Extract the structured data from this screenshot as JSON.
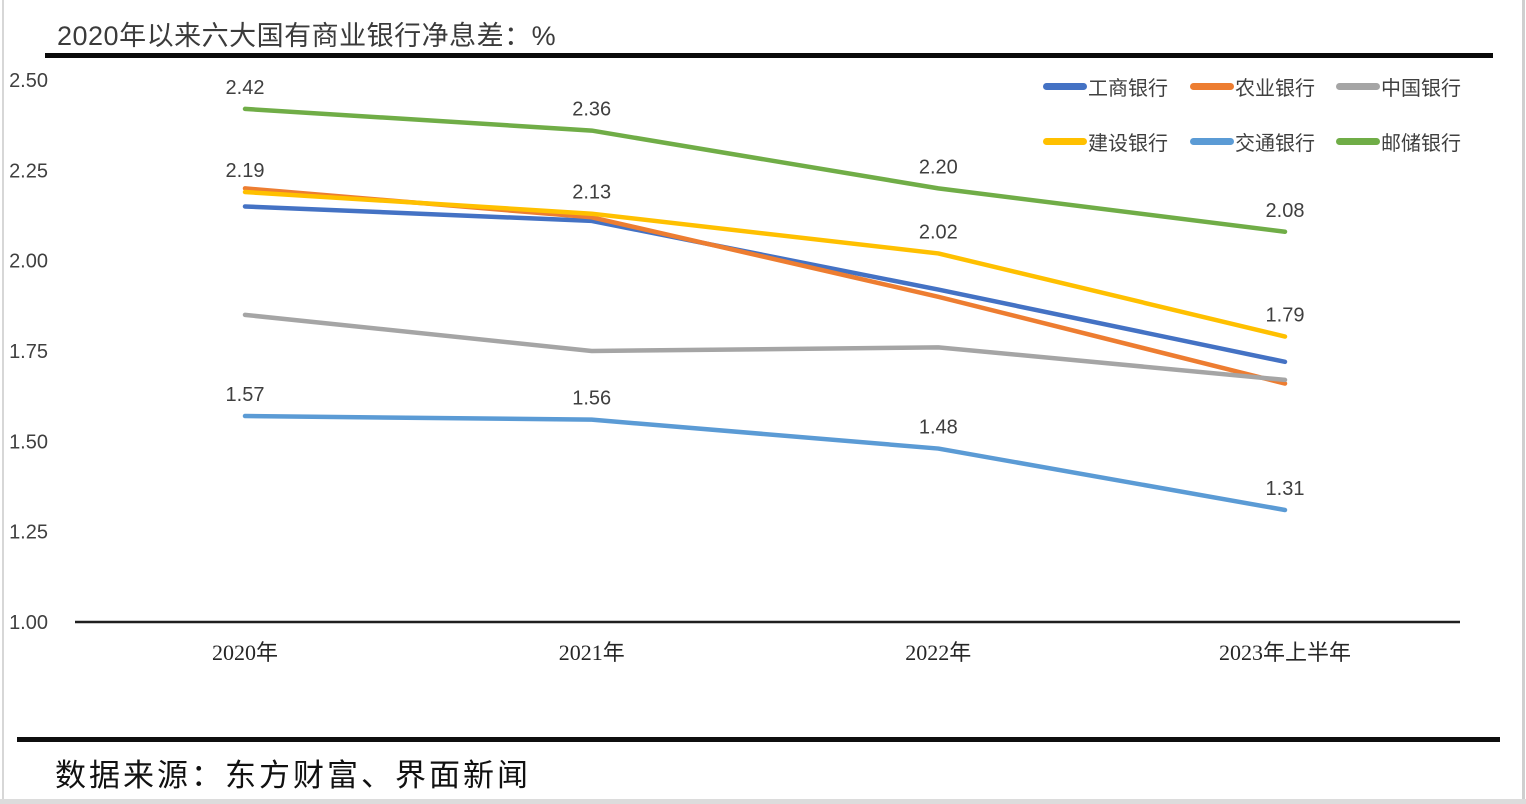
{
  "page": {
    "title": "2020年以来六大国有商业银行净息差：%",
    "source_note": "数据来源：东方财富、界面新闻"
  },
  "chart_data": {
    "type": "line",
    "title": "2020年以来六大国有商业银行净息差：%",
    "unit": "%",
    "categories": [
      "2020年",
      "2021年",
      "2022年",
      "2023年上半年"
    ],
    "ylim": [
      1.0,
      2.5
    ],
    "yticks": [
      2.5,
      2.25,
      2.0,
      1.75,
      1.5,
      1.25,
      1.0
    ],
    "grid": false,
    "legend_position": "top-right",
    "series": [
      {
        "name": "工商银行",
        "color": "#4472C4",
        "values": [
          2.15,
          2.11,
          1.92,
          1.72
        ],
        "point_labels_visible": false
      },
      {
        "name": "农业银行",
        "color": "#ED7D31",
        "values": [
          2.2,
          2.12,
          1.9,
          1.66
        ],
        "point_labels_visible": false
      },
      {
        "name": "中国银行",
        "color": "#A5A5A5",
        "values": [
          1.85,
          1.75,
          1.76,
          1.67
        ],
        "point_labels_visible": false
      },
      {
        "name": "建设银行",
        "color": "#FFC000",
        "values": [
          2.19,
          2.13,
          2.02,
          1.79
        ],
        "point_labels_visible": true
      },
      {
        "name": "交通银行",
        "color": "#5B9BD5",
        "values": [
          1.57,
          1.56,
          1.48,
          1.31
        ],
        "point_labels_visible": true
      },
      {
        "name": "邮储银行",
        "color": "#70AD47",
        "values": [
          2.42,
          2.36,
          2.2,
          2.08
        ],
        "point_labels_visible": true
      }
    ]
  }
}
